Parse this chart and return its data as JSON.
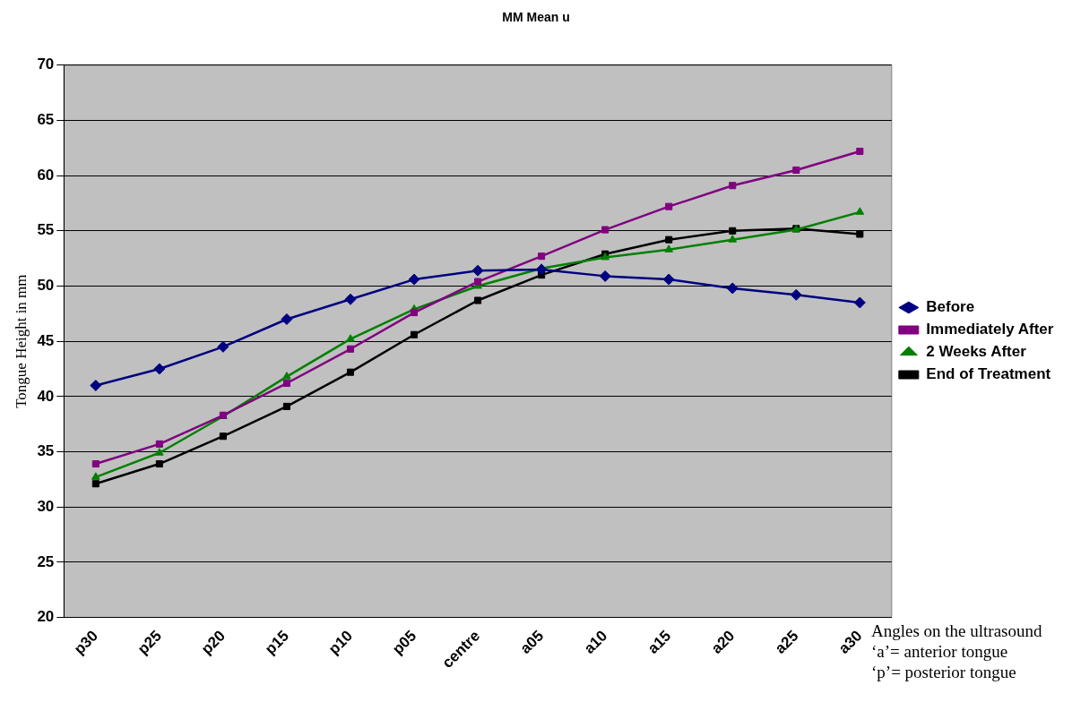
{
  "chart_data": {
    "type": "line",
    "title": "MM Mean u",
    "ylabel": "Tongue Height in mm",
    "categories": [
      "p30",
      "p25",
      "p20",
      "p15",
      "p10",
      "p05",
      "centre",
      "a05",
      "a10",
      "a15",
      "a20",
      "a25",
      "a30"
    ],
    "series": [
      {
        "name": "Before",
        "color": "#000080",
        "marker": "diamond",
        "values": [
          41.0,
          42.5,
          44.5,
          47.0,
          48.8,
          50.6,
          51.4,
          51.5,
          50.9,
          50.6,
          49.8,
          49.2,
          48.5
        ]
      },
      {
        "name": "Immediately After",
        "color": "#800080",
        "marker": "square",
        "values": [
          33.9,
          35.7,
          38.3,
          41.2,
          44.3,
          47.6,
          50.4,
          52.7,
          55.1,
          57.2,
          59.1,
          60.5,
          62.2
        ]
      },
      {
        "name": "2 Weeks After",
        "color": "#008000",
        "marker": "triangle",
        "values": [
          32.7,
          34.9,
          38.2,
          41.8,
          45.2,
          47.9,
          50.0,
          51.6,
          52.6,
          53.3,
          54.2,
          55.1,
          56.7
        ]
      },
      {
        "name": "End of Treatment",
        "color": "#000000",
        "marker": "square",
        "values": [
          32.1,
          33.9,
          36.4,
          39.1,
          42.2,
          45.6,
          48.7,
          51.0,
          52.9,
          54.2,
          55.0,
          55.2,
          54.7
        ]
      }
    ],
    "ylim": [
      20,
      70
    ],
    "yticks": [
      20,
      25,
      30,
      35,
      40,
      45,
      50,
      55,
      60,
      65,
      70
    ],
    "grid": "y",
    "legend": "right",
    "line_style": "solid",
    "annotations": [
      "Angles on the ultrasound",
      "‘a’= anterior tongue",
      "‘p’= posterior tongue"
    ]
  }
}
